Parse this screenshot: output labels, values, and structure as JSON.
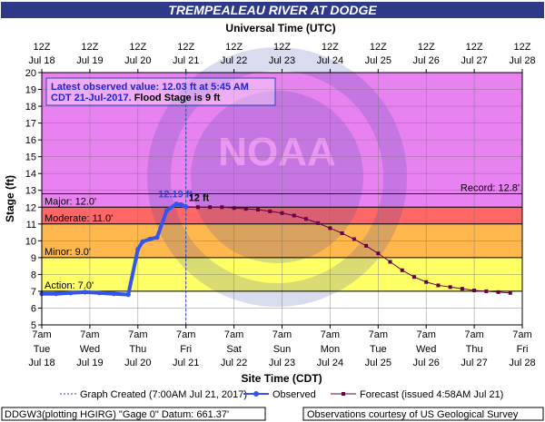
{
  "chart_data": {
    "type": "line",
    "title": "TREMPEALEAU RIVER AT DODGE",
    "top_axis_title": "Universal Time (UTC)",
    "bottom_axis_title": "Site Time (CDT)",
    "ylabel": "Stage (ft)",
    "ylim": [
      5,
      20
    ],
    "y_ticks": [
      "5",
      "6",
      "7",
      "8",
      "9",
      "10",
      "11",
      "12",
      "13",
      "14",
      "15",
      "16",
      "17",
      "18",
      "19",
      "20"
    ],
    "x_days_range": [
      0,
      10
    ],
    "top_ticks": [
      {
        "line1": "12Z",
        "line2": "Jul 18"
      },
      {
        "line1": "12Z",
        "line2": "Jul 19"
      },
      {
        "line1": "12Z",
        "line2": "Jul 20"
      },
      {
        "line1": "12Z",
        "line2": "Jul 21"
      },
      {
        "line1": "12Z",
        "line2": "Jul 22"
      },
      {
        "line1": "12Z",
        "line2": "Jul 23"
      },
      {
        "line1": "12Z",
        "line2": "Jul 24"
      },
      {
        "line1": "12Z",
        "line2": "Jul 25"
      },
      {
        "line1": "12Z",
        "line2": "Jul 26"
      },
      {
        "line1": "12Z",
        "line2": "Jul 27"
      },
      {
        "line1": "12Z",
        "line2": "Jul 28"
      }
    ],
    "bottom_ticks": [
      {
        "line1": "7am",
        "line2": "Tue",
        "line3": "Jul 18"
      },
      {
        "line1": "7am",
        "line2": "Wed",
        "line3": "Jul 19"
      },
      {
        "line1": "7am",
        "line2": "Thu",
        "line3": "Jul 20"
      },
      {
        "line1": "7am",
        "line2": "Fri",
        "line3": "Jul 21"
      },
      {
        "line1": "7am",
        "line2": "Sat",
        "line3": "Jul 22"
      },
      {
        "line1": "7am",
        "line2": "Sun",
        "line3": "Jul 23"
      },
      {
        "line1": "7am",
        "line2": "Mon",
        "line3": "Jul 24"
      },
      {
        "line1": "7am",
        "line2": "Tue",
        "line3": "Jul 25"
      },
      {
        "line1": "7am",
        "line2": "Wed",
        "line3": "Jul 26"
      },
      {
        "line1": "7am",
        "line2": "Thu",
        "line3": "Jul 27"
      },
      {
        "line1": "7am",
        "line2": "Fri",
        "line3": "Jul 28"
      }
    ],
    "bands": [
      {
        "name": "Action",
        "label": "Action: 7.0'",
        "from": 7,
        "to": 9,
        "color": "#ffff66"
      },
      {
        "name": "Minor",
        "label": "Minor: 9.0'",
        "from": 9,
        "to": 11,
        "color": "#ffb84d"
      },
      {
        "name": "Moderate",
        "label": "Moderate: 11.0'",
        "from": 11,
        "to": 12,
        "color": "#ff6666"
      },
      {
        "name": "Major",
        "label": "Major: 12.0'",
        "from": 12,
        "to": 20,
        "color": "#e882f0"
      }
    ],
    "below_action_color": "#ffffff",
    "record": {
      "label": "Record: 12.8'",
      "value": 12.8
    },
    "graph_created_day": 3.0,
    "observed_peak_label": "12.19 ft",
    "forecast_peak_label": "12 ft",
    "info_box": {
      "line1": "Latest observed value: 12.03 ft at 5:45 AM",
      "line2_a": "CDT 21-Jul-2017.",
      "line2_b": " Flood Stage is 9 ft"
    },
    "series": [
      {
        "name": "Observed",
        "color": "#3355ee",
        "x": [
          0.0,
          0.3,
          0.6,
          0.9,
          1.2,
          1.5,
          1.8,
          2.0,
          2.1,
          2.25,
          2.4,
          2.6,
          2.8,
          2.9,
          3.0
        ],
        "y": [
          6.85,
          6.85,
          6.9,
          6.95,
          6.9,
          6.85,
          6.8,
          9.5,
          9.95,
          10.1,
          10.2,
          11.8,
          12.19,
          12.15,
          12.03
        ]
      },
      {
        "name": "Forecast",
        "color": "#660044",
        "x": [
          3.0,
          3.25,
          3.5,
          3.75,
          4.0,
          4.25,
          4.5,
          4.75,
          5.0,
          5.25,
          5.5,
          5.75,
          6.0,
          6.25,
          6.5,
          6.75,
          7.0,
          7.25,
          7.5,
          7.75,
          8.0,
          8.25,
          8.5,
          8.75,
          9.0,
          9.25,
          9.5,
          9.75
        ],
        "y": [
          12.03,
          12.0,
          12.0,
          12.0,
          11.95,
          11.9,
          11.85,
          11.75,
          11.65,
          11.5,
          11.3,
          11.05,
          10.75,
          10.45,
          10.1,
          9.7,
          9.25,
          8.75,
          8.25,
          7.85,
          7.55,
          7.35,
          7.25,
          7.15,
          7.05,
          7.0,
          6.95,
          6.9
        ]
      }
    ],
    "legend": {
      "graph_created": "Graph Created (7:00AM Jul 21, 2017)",
      "observed": "Observed",
      "forecast": "Forecast (issued 4:58AM Jul 21)"
    },
    "footer_left": "DDGW3(plotting HGIRG) \"Gage 0\" Datum: 661.37'",
    "footer_right": "Observations courtesy of US Geological Survey",
    "colors": {
      "title_bg": "#2e3a87",
      "title_text": "#ffffff",
      "info_text": "#2222cc",
      "info_border": "#3344bb",
      "grid": "#777777"
    }
  }
}
